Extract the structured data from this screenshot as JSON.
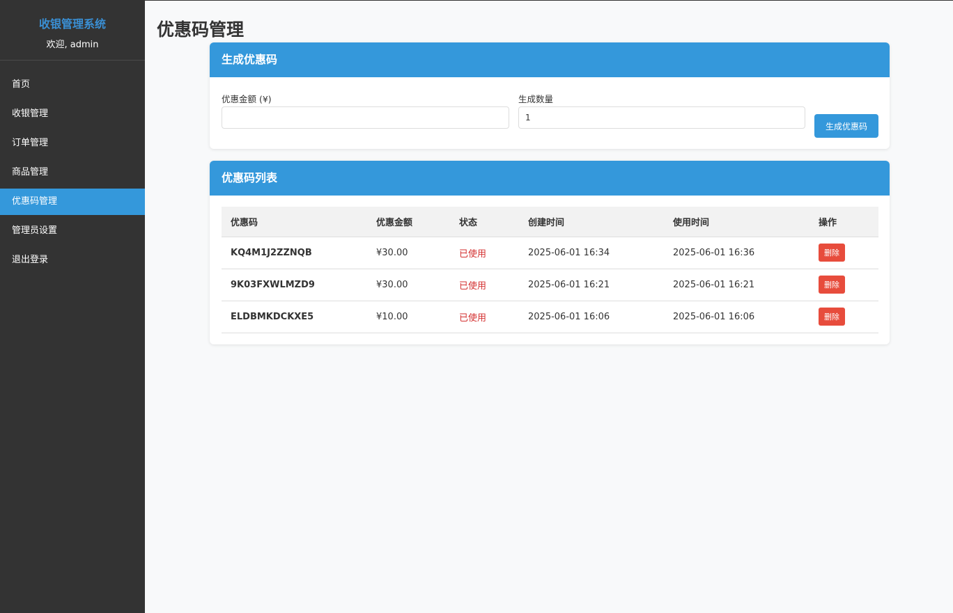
{
  "sidebar": {
    "title": "收银管理系统",
    "welcome": "欢迎, admin",
    "items": [
      {
        "label": "首页"
      },
      {
        "label": "收银管理"
      },
      {
        "label": "订单管理"
      },
      {
        "label": "商品管理"
      },
      {
        "label": "优惠码管理",
        "active": true
      },
      {
        "label": "管理员设置"
      },
      {
        "label": "退出登录"
      }
    ]
  },
  "page_title": "优惠码管理",
  "generate": {
    "title": "生成优惠码",
    "amount_label": "优惠金额 (¥)",
    "amount_value": "",
    "count_label": "生成数量",
    "count_value": "1",
    "button": "生成优惠码"
  },
  "list": {
    "title": "优惠码列表",
    "columns": [
      "优惠码",
      "优惠金额",
      "状态",
      "创建时间",
      "使用时间",
      "操作"
    ],
    "rows": [
      {
        "code": "KQ4M1J2ZZNQB",
        "amount": "¥30.00",
        "status": "已使用",
        "created": "2025-06-01 16:34",
        "used": "2025-06-01 16:36",
        "action": "删除"
      },
      {
        "code": "9K03FXWLMZD9",
        "amount": "¥30.00",
        "status": "已使用",
        "created": "2025-06-01 16:21",
        "used": "2025-06-01 16:21",
        "action": "删除"
      },
      {
        "code": "ELDBMKDCKXE5",
        "amount": "¥10.00",
        "status": "已使用",
        "created": "2025-06-01 16:06",
        "used": "2025-06-01 16:06",
        "action": "删除"
      }
    ]
  },
  "colors": {
    "accent": "#3498db",
    "sidebar": "#333333",
    "danger": "#e74c3c",
    "status_used": "#d32f2f"
  }
}
